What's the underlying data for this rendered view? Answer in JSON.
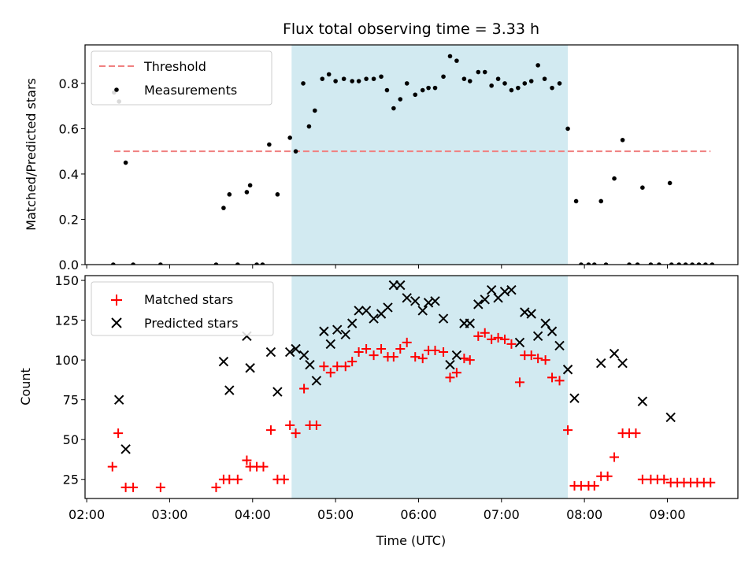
{
  "chart_data": {
    "type": "scatter",
    "title": "Flux total observing time = 3.33 h",
    "xlabel": "Time (UTC)",
    "x_tick_labels": [
      "02:00",
      "03:00",
      "04:00",
      "05:00",
      "06:00",
      "07:00",
      "08:00",
      "09:00"
    ],
    "x_tick_values": [
      2,
      3,
      4,
      5,
      6,
      7,
      8,
      9
    ],
    "xlim": [
      1.98,
      9.85
    ],
    "shaded_interval": {
      "x_start": 4.47,
      "x_end": 7.8,
      "color": "#add8e6"
    },
    "top": {
      "ylabel": "Matched/Predicted stars",
      "ylim": [
        0,
        0.97
      ],
      "y_ticks": [
        0.0,
        0.2,
        0.4,
        0.6,
        0.8
      ],
      "y_tick_labels": [
        "0.0",
        "0.2",
        "0.4",
        "0.6",
        "0.8"
      ],
      "threshold": {
        "name": "Threshold",
        "value": 0.5,
        "x_start": 2.33,
        "x_end": 9.52,
        "color": "#f08080",
        "style": "dashed"
      },
      "measurements": {
        "name": "Measurements",
        "color": "#000000",
        "points": [
          [
            2.32,
            0.0
          ],
          [
            2.33,
            0.76
          ],
          [
            2.39,
            0.72
          ],
          [
            2.47,
            0.45
          ],
          [
            2.56,
            0.0
          ],
          [
            2.89,
            0.0
          ],
          [
            3.56,
            0.0
          ],
          [
            3.65,
            0.25
          ],
          [
            3.72,
            0.31
          ],
          [
            3.82,
            0.0
          ],
          [
            3.93,
            0.32
          ],
          [
            3.97,
            0.35
          ],
          [
            4.05,
            0.0
          ],
          [
            4.12,
            0.0
          ],
          [
            4.2,
            0.53
          ],
          [
            4.3,
            0.31
          ],
          [
            4.45,
            0.56
          ],
          [
            4.52,
            0.5
          ],
          [
            4.61,
            0.8
          ],
          [
            4.68,
            0.61
          ],
          [
            4.75,
            0.68
          ],
          [
            4.84,
            0.82
          ],
          [
            4.92,
            0.84
          ],
          [
            5.0,
            0.81
          ],
          [
            5.1,
            0.82
          ],
          [
            5.2,
            0.81
          ],
          [
            5.28,
            0.81
          ],
          [
            5.37,
            0.82
          ],
          [
            5.46,
            0.82
          ],
          [
            5.55,
            0.83
          ],
          [
            5.62,
            0.77
          ],
          [
            5.7,
            0.69
          ],
          [
            5.78,
            0.73
          ],
          [
            5.86,
            0.8
          ],
          [
            5.96,
            0.75
          ],
          [
            6.05,
            0.77
          ],
          [
            6.12,
            0.78
          ],
          [
            6.2,
            0.78
          ],
          [
            6.3,
            0.83
          ],
          [
            6.38,
            0.92
          ],
          [
            6.46,
            0.9
          ],
          [
            6.55,
            0.82
          ],
          [
            6.62,
            0.81
          ],
          [
            6.72,
            0.85
          ],
          [
            6.8,
            0.85
          ],
          [
            6.88,
            0.79
          ],
          [
            6.96,
            0.82
          ],
          [
            7.04,
            0.8
          ],
          [
            7.12,
            0.77
          ],
          [
            7.2,
            0.78
          ],
          [
            7.28,
            0.8
          ],
          [
            7.36,
            0.81
          ],
          [
            7.44,
            0.88
          ],
          [
            7.52,
            0.82
          ],
          [
            7.61,
            0.78
          ],
          [
            7.7,
            0.8
          ],
          [
            7.8,
            0.6
          ],
          [
            7.9,
            0.28
          ],
          [
            7.96,
            0.0
          ],
          [
            8.05,
            0.0
          ],
          [
            8.12,
            0.0
          ],
          [
            8.2,
            0.28
          ],
          [
            8.26,
            0.0
          ],
          [
            8.36,
            0.38
          ],
          [
            8.46,
            0.55
          ],
          [
            8.54,
            0.0
          ],
          [
            8.64,
            0.0
          ],
          [
            8.7,
            0.34
          ],
          [
            8.8,
            0.0
          ],
          [
            8.9,
            0.0
          ],
          [
            9.03,
            0.36
          ],
          [
            9.05,
            0.0
          ],
          [
            9.14,
            0.0
          ],
          [
            9.22,
            0.0
          ],
          [
            9.3,
            0.0
          ],
          [
            9.38,
            0.0
          ],
          [
            9.46,
            0.0
          ],
          [
            9.54,
            0.0
          ]
        ]
      }
    },
    "bottom": {
      "ylabel": "Count",
      "ylim": [
        13,
        153
      ],
      "y_ticks": [
        25,
        50,
        75,
        100,
        125,
        150
      ],
      "y_tick_labels": [
        "25",
        "50",
        "75",
        "100",
        "125",
        "150"
      ],
      "series": [
        {
          "name": "Matched stars",
          "marker": "plus",
          "color": "#ff0000",
          "points": [
            [
              2.31,
              33
            ],
            [
              2.38,
              54
            ],
            [
              2.47,
              20
            ],
            [
              2.56,
              20
            ],
            [
              2.89,
              20
            ],
            [
              3.56,
              20
            ],
            [
              3.65,
              25
            ],
            [
              3.72,
              25
            ],
            [
              3.82,
              25
            ],
            [
              3.93,
              37
            ],
            [
              3.97,
              33
            ],
            [
              4.05,
              33
            ],
            [
              4.13,
              33
            ],
            [
              4.22,
              56
            ],
            [
              4.3,
              25
            ],
            [
              4.38,
              25
            ],
            [
              4.45,
              59
            ],
            [
              4.52,
              54
            ],
            [
              4.62,
              82
            ],
            [
              4.69,
              59
            ],
            [
              4.77,
              59
            ],
            [
              4.86,
              96
            ],
            [
              4.94,
              92
            ],
            [
              5.02,
              96
            ],
            [
              5.12,
              96
            ],
            [
              5.2,
              99
            ],
            [
              5.28,
              105
            ],
            [
              5.37,
              107
            ],
            [
              5.46,
              103
            ],
            [
              5.55,
              107
            ],
            [
              5.63,
              102
            ],
            [
              5.7,
              102
            ],
            [
              5.78,
              107
            ],
            [
              5.86,
              111
            ],
            [
              5.96,
              102
            ],
            [
              6.05,
              101
            ],
            [
              6.12,
              106
            ],
            [
              6.2,
              106
            ],
            [
              6.3,
              105
            ],
            [
              6.38,
              89
            ],
            [
              6.46,
              92
            ],
            [
              6.55,
              101
            ],
            [
              6.62,
              100
            ],
            [
              6.72,
              115
            ],
            [
              6.8,
              117
            ],
            [
              6.88,
              113
            ],
            [
              6.96,
              114
            ],
            [
              7.04,
              113
            ],
            [
              7.12,
              110
            ],
            [
              7.22,
              86
            ],
            [
              7.28,
              103
            ],
            [
              7.36,
              103
            ],
            [
              7.44,
              101
            ],
            [
              7.53,
              100
            ],
            [
              7.61,
              89
            ],
            [
              7.7,
              87
            ],
            [
              7.8,
              56
            ],
            [
              7.88,
              21
            ],
            [
              7.96,
              21
            ],
            [
              8.05,
              21
            ],
            [
              8.12,
              21
            ],
            [
              8.2,
              27
            ],
            [
              8.28,
              27
            ],
            [
              8.36,
              39
            ],
            [
              8.46,
              54
            ],
            [
              8.54,
              54
            ],
            [
              8.62,
              54
            ],
            [
              8.7,
              25
            ],
            [
              8.8,
              25
            ],
            [
              8.88,
              25
            ],
            [
              8.96,
              25
            ],
            [
              9.04,
              23
            ],
            [
              9.12,
              23
            ],
            [
              9.2,
              23
            ],
            [
              9.28,
              23
            ],
            [
              9.36,
              23
            ],
            [
              9.44,
              23
            ],
            [
              9.52,
              23
            ]
          ]
        },
        {
          "name": "Predicted stars",
          "marker": "x",
          "color": "#000000",
          "points": [
            [
              2.39,
              75
            ],
            [
              2.47,
              44
            ],
            [
              3.65,
              99
            ],
            [
              3.72,
              81
            ],
            [
              3.93,
              115
            ],
            [
              3.97,
              95
            ],
            [
              4.22,
              105
            ],
            [
              4.3,
              80
            ],
            [
              4.45,
              105
            ],
            [
              4.52,
              107
            ],
            [
              4.62,
              103
            ],
            [
              4.69,
              97
            ],
            [
              4.77,
              87
            ],
            [
              4.86,
              118
            ],
            [
              4.94,
              110
            ],
            [
              5.02,
              119
            ],
            [
              5.12,
              116
            ],
            [
              5.2,
              123
            ],
            [
              5.28,
              131
            ],
            [
              5.37,
              131
            ],
            [
              5.46,
              126
            ],
            [
              5.55,
              129
            ],
            [
              5.63,
              133
            ],
            [
              5.7,
              147
            ],
            [
              5.78,
              147
            ],
            [
              5.86,
              139
            ],
            [
              5.96,
              137
            ],
            [
              6.05,
              131
            ],
            [
              6.12,
              136
            ],
            [
              6.2,
              137
            ],
            [
              6.3,
              126
            ],
            [
              6.38,
              97
            ],
            [
              6.46,
              103
            ],
            [
              6.55,
              123
            ],
            [
              6.62,
              123
            ],
            [
              6.72,
              135
            ],
            [
              6.8,
              138
            ],
            [
              6.88,
              144
            ],
            [
              6.96,
              139
            ],
            [
              7.04,
              143
            ],
            [
              7.12,
              144
            ],
            [
              7.22,
              111
            ],
            [
              7.28,
              130
            ],
            [
              7.36,
              129
            ],
            [
              7.44,
              115
            ],
            [
              7.53,
              123
            ],
            [
              7.61,
              118
            ],
            [
              7.7,
              109
            ],
            [
              7.8,
              94
            ],
            [
              7.88,
              76
            ],
            [
              8.2,
              98
            ],
            [
              8.36,
              104
            ],
            [
              8.46,
              98
            ],
            [
              8.7,
              74
            ],
            [
              9.04,
              64
            ]
          ]
        }
      ]
    }
  }
}
